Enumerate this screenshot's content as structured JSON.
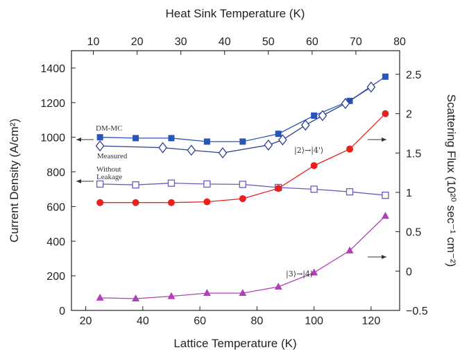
{
  "chart_data": {
    "type": "line",
    "title": "",
    "xlabel": "Lattice Temperature (K)",
    "ylabel": "Current Density (A/cm²)",
    "x2label": "Heat Sink Temperature (K)",
    "y2label": "Scattering Flux (10²⁰ sec⁻¹ cm⁻²)",
    "xlim": [
      15,
      130
    ],
    "ylim": [
      0,
      1500
    ],
    "y2lim": [
      -0.5,
      2.8
    ],
    "x2lim": [
      5,
      80
    ],
    "xticks": [
      20,
      40,
      60,
      80,
      100,
      120
    ],
    "yticks": [
      0,
      200,
      400,
      600,
      800,
      1000,
      1200,
      1400
    ],
    "x2ticks": [
      10,
      20,
      30,
      40,
      50,
      60,
      70,
      80
    ],
    "y2ticks": [
      -0.5,
      0,
      0.5,
      1,
      1.5,
      2,
      2.5
    ],
    "y2tick_labels": [
      "−0.5",
      "0",
      "0.5",
      "1",
      "1.5",
      "2",
      "2.5"
    ],
    "grid": false,
    "series": [
      {
        "name": "DM-MC",
        "axis": "left",
        "marker": "square-filled",
        "color": "#2a55b8",
        "x": [
          25,
          37.5,
          50,
          62.5,
          75,
          87.5,
          100,
          112.5,
          125
        ],
        "y": [
          1000,
          995,
          995,
          975,
          975,
          1020,
          1125,
          1210,
          1350
        ]
      },
      {
        "name": "Measured",
        "axis": "left",
        "marker": "diamond-open",
        "color": "#2a3f8f",
        "x": [
          25,
          47,
          57,
          68,
          84,
          89,
          97,
          103,
          111,
          120
        ],
        "y": [
          950,
          940,
          925,
          910,
          955,
          985,
          1070,
          1125,
          1195,
          1290
        ]
      },
      {
        "name": "Without Leakage",
        "axis": "left",
        "marker": "square-open",
        "color": "#6a5ac0",
        "x": [
          25,
          37.5,
          50,
          62.5,
          75,
          87.5,
          100,
          112.5,
          125
        ],
        "y": [
          730,
          725,
          735,
          730,
          728,
          710,
          700,
          685,
          665
        ]
      },
      {
        "name": "|2⟩→|4'⟩",
        "axis": "right",
        "marker": "circle-filled",
        "color": "#e8201e",
        "x": [
          25,
          37.5,
          50,
          62.5,
          75,
          87.5,
          100,
          112.5,
          125
        ],
        "y": [
          0.87,
          0.87,
          0.87,
          0.88,
          0.92,
          1.05,
          1.34,
          1.55,
          2.0
        ]
      },
      {
        "name": "|3⟩→|4⟩",
        "axis": "right",
        "marker": "triangle-filled",
        "color": "#b040b8",
        "x": [
          25,
          37.5,
          50,
          62.5,
          75,
          87.5,
          100,
          112.5,
          125
        ],
        "y": [
          -0.34,
          -0.35,
          -0.32,
          -0.28,
          -0.28,
          -0.2,
          -0.02,
          0.26,
          0.7
        ]
      }
    ],
    "annotations": {
      "dmmc": "DM-MC",
      "measured": "Measured",
      "without": "Without",
      "leakage": "Leakage",
      "label_24": "|2⟩→|4'⟩",
      "label_34": "|3⟩→|4⟩"
    }
  }
}
